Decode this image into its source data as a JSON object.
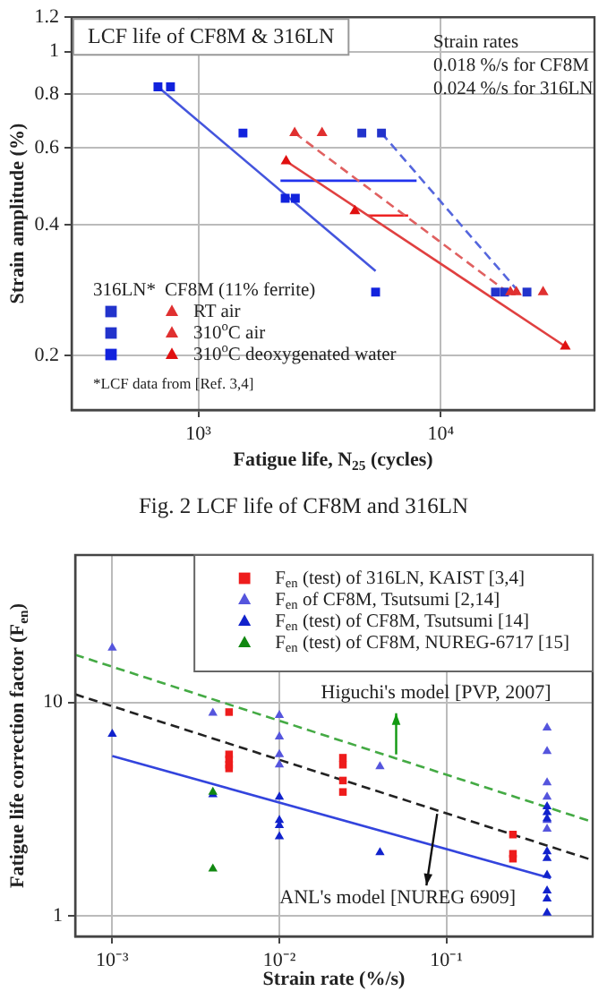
{
  "chart_data": [
    {
      "type": "scatter",
      "title": "LCF life of CF8M & 316LN",
      "xlabel": "Fatigue life, N$_{25}$ (cycles)",
      "ylabel": "Strain amplitude (%)",
      "legend_title": "CF8M (11% ferrite)",
      "log": "xy",
      "grid": true,
      "legend": "bottom left",
      "xlim": [
        300,
        43000
      ],
      "ylim": [
        0.15,
        1.2
      ],
      "xticks": [
        {
          "value": 1000,
          "label": "10³"
        },
        {
          "value": 10000,
          "label": "10⁴"
        }
      ],
      "yticks": [
        0.2,
        0.4,
        0.6,
        0.8,
        1,
        1.2
      ],
      "annotations": [
        "316LN*",
        "Strain rates",
        "0.018 %/s for CF8M",
        "0.024 %/s for 316LN",
        "*LCF data from [Ref. 3,4]",
        "Fig. 2 LCF life of CF8M and 316LN"
      ],
      "series": [
        {
          "color": "#2233cc",
          "marker": "square",
          "x": [
            5690,
            22650
          ],
          "values": [
            0.65,
            0.28
          ]
        },
        {
          "color": "#2233cc",
          "marker": "square",
          "x": [
            4720,
            16800,
            18300
          ],
          "values": [
            0.65,
            0.28,
            0.28
          ]
        },
        {
          "color": "#1122dd",
          "marker": "square",
          "x": [
            681,
            767,
            1527,
            2280,
            2510,
            5380
          ],
          "values": [
            0.83,
            0.83,
            0.65,
            0.46,
            0.46,
            0.28
          ]
        },
        {
          "name": "RT air",
          "color": "#e03030",
          "marker": "triangle",
          "x": [
            2495,
            20480
          ],
          "values": [
            0.65,
            0.28
          ]
        },
        {
          "name": "310$^{o}$C air",
          "color": "#e03030",
          "marker": "triangle",
          "x": [
            3235,
            19360,
            26400
          ],
          "values": [
            0.65,
            0.28,
            0.28
          ]
        },
        {
          "name": "310$^{o}$C deoxygenated water",
          "color": "#e01010",
          "marker": "triangle",
          "x": [
            2300,
            4420,
            32600
          ],
          "values": [
            0.56,
            0.43,
            0.21
          ]
        },
        {
          "type": "line",
          "color": "#4455dd",
          "x": [
            681,
            5380
          ],
          "values": [
            0.83,
            0.313
          ]
        },
        {
          "type": "line",
          "color": "#e04040",
          "x": [
            2300,
            32600
          ],
          "values": [
            0.56,
            0.21
          ]
        },
        {
          "type": "line",
          "line_style": "dashed",
          "color": "#5566dd",
          "x": [
            5690,
            21000
          ],
          "values": [
            0.65,
            0.28
          ]
        },
        {
          "type": "line",
          "line_style": "dashed",
          "color": "#e06060",
          "x": [
            2495,
            18800
          ],
          "values": [
            0.65,
            0.28
          ]
        },
        {
          "type": "line",
          "color": "#2233ee",
          "x": [
            7940,
            2180
          ],
          "values": [
            0.505,
            0.505
          ]
        },
        {
          "type": "line",
          "color": "#ee2222",
          "x": [
            7330,
            5000
          ],
          "values": [
            0.42,
            0.42
          ]
        }
      ]
    },
    {
      "type": "scatter",
      "xlabel": "Strain rate (%/s)",
      "ylabel": "Fatigue life correction factor (F$_{en}$)",
      "log": "xy",
      "grid": true,
      "legend": "top right",
      "xlim": [
        0.0006,
        0.75
      ],
      "ylim": [
        0.8,
        49
      ],
      "xticks": [
        {
          "value": 0.001,
          "label": "10⁻³"
        },
        {
          "value": 0.01,
          "label": "10⁻²"
        },
        {
          "value": 0.1,
          "label": "10⁻¹"
        }
      ],
      "yticks": [
        1,
        10
      ],
      "annotations": [
        {
          "text": "Higuchi's model [PVP, 2007]",
          "x": 0.05,
          "y": 5.7
        },
        {
          "text": "ANL's model [NUREG 6909]",
          "x": 0.088,
          "y": 3.0
        }
      ],
      "series": [
        {
          "name": "F$_{en}$ (test) of 316LN, KAIST [3,4]",
          "color": "#ee1c1c",
          "marker": "square",
          "x": [
            0.005,
            0.005,
            0.005,
            0.005,
            0.005,
            0.024,
            0.024,
            0.024,
            0.024,
            0.25,
            0.25,
            0.25
          ],
          "values": [
            9.0,
            5.7,
            5.4,
            5.1,
            4.9,
            5.5,
            5.1,
            4.3,
            3.8,
            2.4,
            1.95,
            1.85
          ]
        },
        {
          "name": "F$_{en}$ of CF8M, Tsutsumi [2,14]",
          "color": "#5555dd",
          "marker": "triangle",
          "x": [
            0.001,
            0.004,
            0.01,
            0.01,
            0.01,
            0.01,
            0.04,
            0.4,
            0.4,
            0.4,
            0.4,
            0.4,
            0.4
          ],
          "values": [
            18,
            8.9,
            8.7,
            6.9,
            5.7,
            5.1,
            5.0,
            7.6,
            5.9,
            4.2,
            3.6,
            2.8,
            2.55
          ]
        },
        {
          "name": "F$_{en}$ (test) of CF8M, Tsutsumi [14]",
          "color": "#1122cc",
          "marker": "triangle",
          "x": [
            0.001,
            0.004,
            0.01,
            0.01,
            0.01,
            0.01,
            0.04,
            0.4,
            0.4,
            0.4,
            0.4,
            0.4,
            0.4,
            0.4,
            0.4,
            0.4
          ],
          "values": [
            7.1,
            3.7,
            3.6,
            2.8,
            2.65,
            2.35,
            1.98,
            3.25,
            3.05,
            2.85,
            2.0,
            1.86,
            1.55,
            1.31,
            1.2,
            1.03
          ]
        },
        {
          "name": "F$_{en}$ (test) of CF8M, NUREG-6717 [15]",
          "color": "#118811",
          "marker": "triangle",
          "x": [
            0.004,
            0.004
          ],
          "values": [
            3.8,
            1.66
          ]
        },
        {
          "type": "line",
          "line_style": "dashed",
          "color": "#44aa44",
          "x": [
            0.0006,
            0.75
          ],
          "values": [
            16.7,
            2.75
          ]
        },
        {
          "type": "line",
          "line_style": "dashed",
          "color": "#222222",
          "x": [
            0.0006,
            0.75
          ],
          "values": [
            10.9,
            1.82
          ]
        },
        {
          "type": "line",
          "color": "#3344dd",
          "x": [
            0.001,
            0.42
          ],
          "values": [
            5.6,
            1.5
          ]
        }
      ]
    }
  ]
}
